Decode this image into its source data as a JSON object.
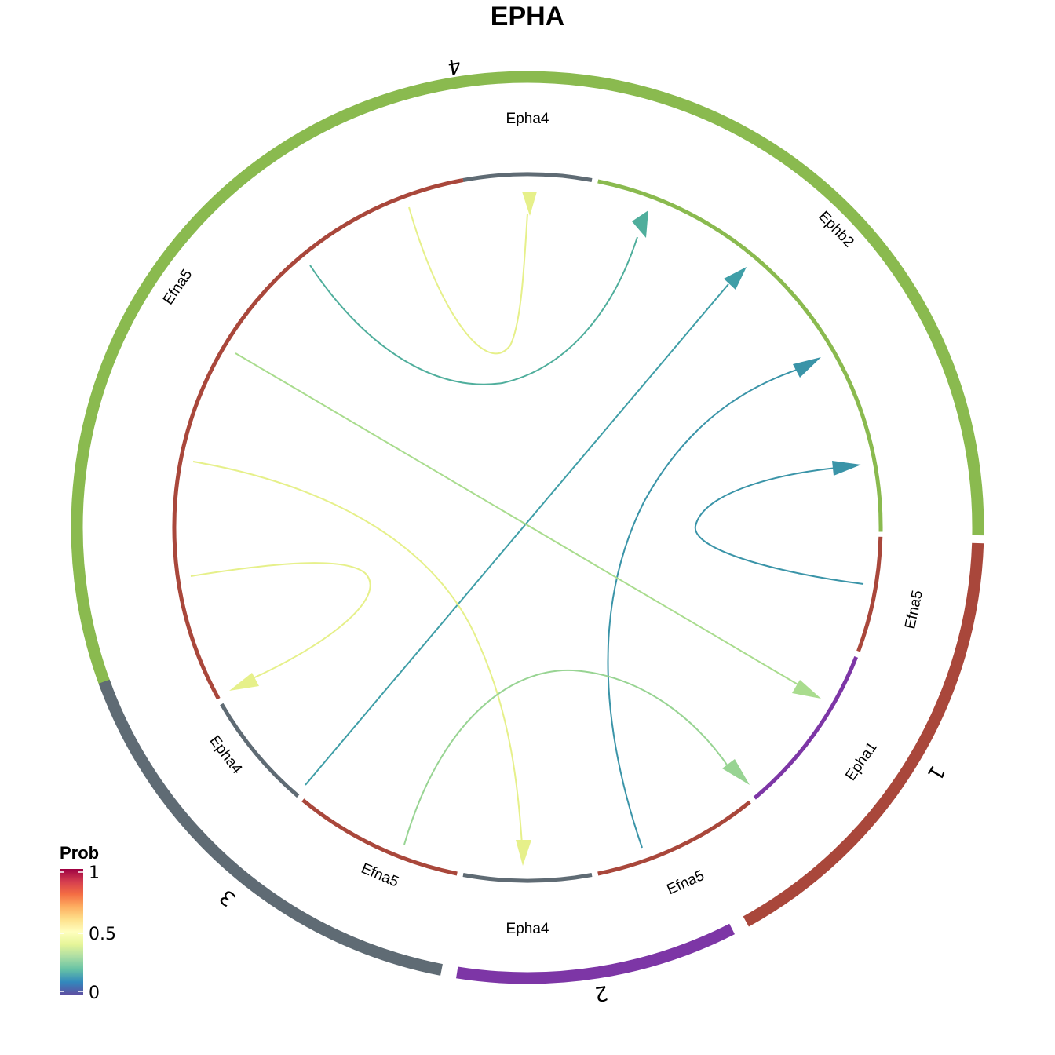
{
  "title": "EPHA",
  "legend": {
    "title": "Prob",
    "ticks": [
      "1",
      "0.5",
      "0"
    ],
    "colorscale": [
      "#5e4fa2",
      "#3288bd",
      "#66c2a5",
      "#abdda4",
      "#e6f598",
      "#ffffbf",
      "#fee08b",
      "#fdae61",
      "#f46d43",
      "#d53e4f",
      "#9e0142"
    ]
  },
  "groups": [
    {
      "label": "4",
      "color": "#8aba4f"
    },
    {
      "label": "1",
      "color": "#a9473b"
    },
    {
      "label": "2",
      "color": "#7d36a6"
    },
    {
      "label": "3",
      "color": "#5f6b74"
    }
  ],
  "sectors": [
    {
      "label": "Epha4",
      "group": "4",
      "color": "#5f6b74"
    },
    {
      "label": "Ephb2",
      "group": "4",
      "color": "#8aba4f"
    },
    {
      "label": "Efna5",
      "group": "1",
      "color": "#a9473b"
    },
    {
      "label": "Epha1",
      "group": "2",
      "color": "#7d36a6"
    },
    {
      "label": "Efna5",
      "group": "2",
      "color": "#a9473b"
    },
    {
      "label": "Epha4",
      "group": "2",
      "color": "#5f6b74"
    },
    {
      "label": "Efna5",
      "group": "3",
      "color": "#a9473b"
    },
    {
      "label": "Epha4",
      "group": "3",
      "color": "#5f6b74"
    },
    {
      "label": "Efna5",
      "group": "4",
      "color": "#a9473b"
    }
  ],
  "links": [
    {
      "ligand_group": "4",
      "ligand": "Efna5",
      "receptor_group": "4",
      "receptor": "Epha4",
      "prob": 0.48,
      "color": "#e6f08a"
    },
    {
      "ligand_group": "4",
      "ligand": "Efna5",
      "receptor_group": "4",
      "receptor": "Ephb2",
      "prob": 0.28,
      "color": "#4fae9c"
    },
    {
      "ligand_group": "3",
      "ligand": "Efna5",
      "receptor_group": "4",
      "receptor": "Ephb2",
      "prob": 0.22,
      "color": "#3f9ea7"
    },
    {
      "ligand_group": "2",
      "ligand": "Efna5",
      "receptor_group": "4",
      "receptor": "Ephb2",
      "prob": 0.2,
      "color": "#3a94a8"
    },
    {
      "ligand_group": "1",
      "ligand": "Efna5",
      "receptor_group": "4",
      "receptor": "Ephb2",
      "prob": 0.2,
      "color": "#3a94a8"
    },
    {
      "ligand_group": "4",
      "ligand": "Efna5",
      "receptor_group": "2",
      "receptor": "Epha1",
      "prob": 0.4,
      "color": "#a9dc8e"
    },
    {
      "ligand_group": "4",
      "ligand": "Efna5",
      "receptor_group": "2",
      "receptor": "Epha4",
      "prob": 0.48,
      "color": "#e6f08a"
    },
    {
      "ligand_group": "4",
      "ligand": "Efna5",
      "receptor_group": "3",
      "receptor": "Epha4",
      "prob": 0.48,
      "color": "#e6f08a"
    },
    {
      "ligand_group": "3",
      "ligand": "Efna5",
      "receptor_group": "2",
      "receptor": "Epha1",
      "prob": 0.38,
      "color": "#98d493"
    }
  ]
}
